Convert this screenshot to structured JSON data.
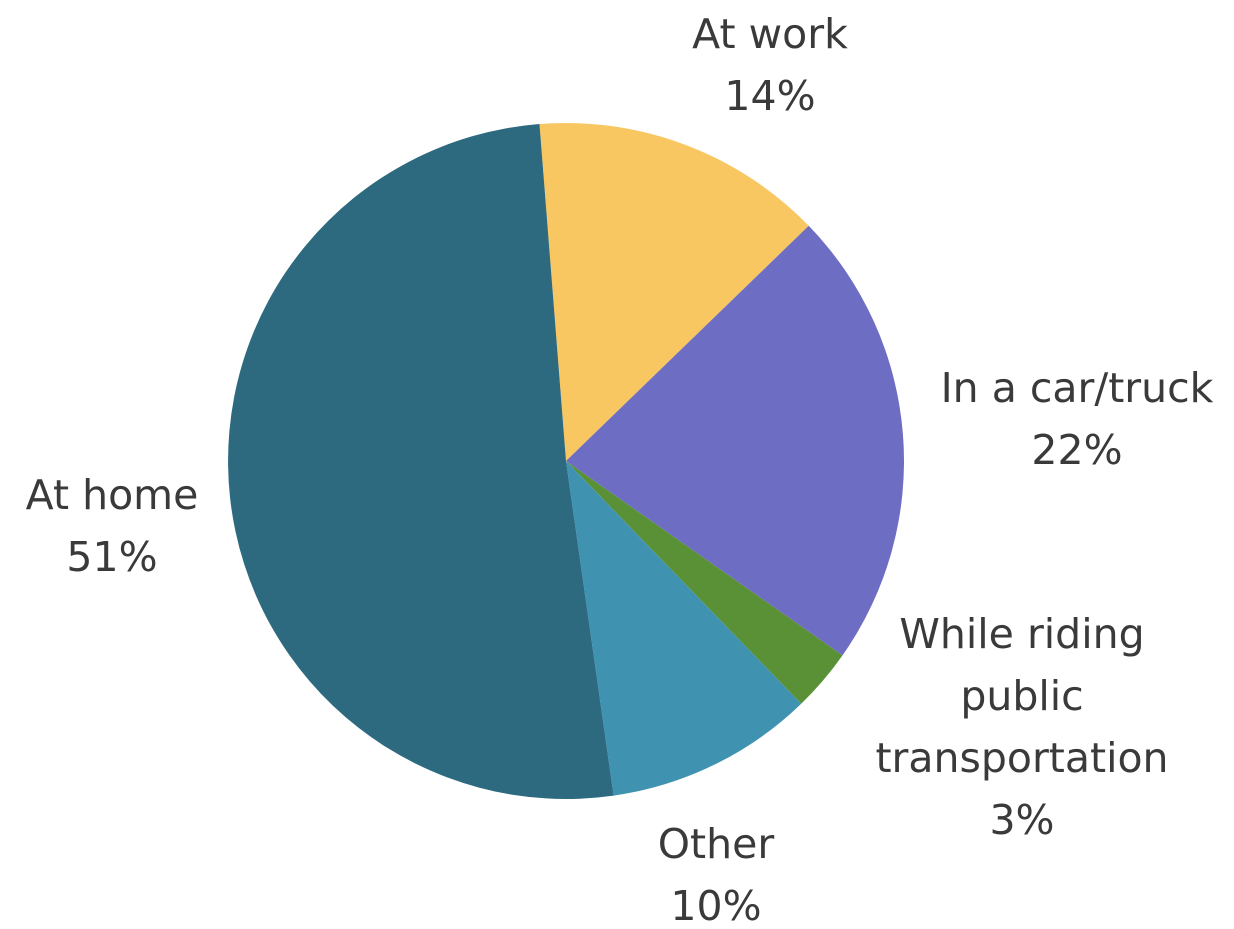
{
  "chart_data": {
    "type": "pie",
    "title": "",
    "start_angle_deg": -4.5,
    "direction": "clockwise",
    "slices": [
      {
        "label": "At work",
        "value": 14,
        "value_label": "14%",
        "color": "#F8C762"
      },
      {
        "label": "In a car/truck",
        "value": 22,
        "value_label": "22%",
        "color": "#6E6DC4"
      },
      {
        "label": "While riding public transportation",
        "label_lines": [
          "While riding",
          "public",
          "transportation"
        ],
        "value": 3,
        "value_label": "3%",
        "color": "#5A9137"
      },
      {
        "label": "Other",
        "value": 10,
        "value_label": "10%",
        "color": "#3F93B1"
      },
      {
        "label": "At home",
        "value": 51,
        "value_label": "51%",
        "color": "#2D6A80"
      }
    ]
  }
}
